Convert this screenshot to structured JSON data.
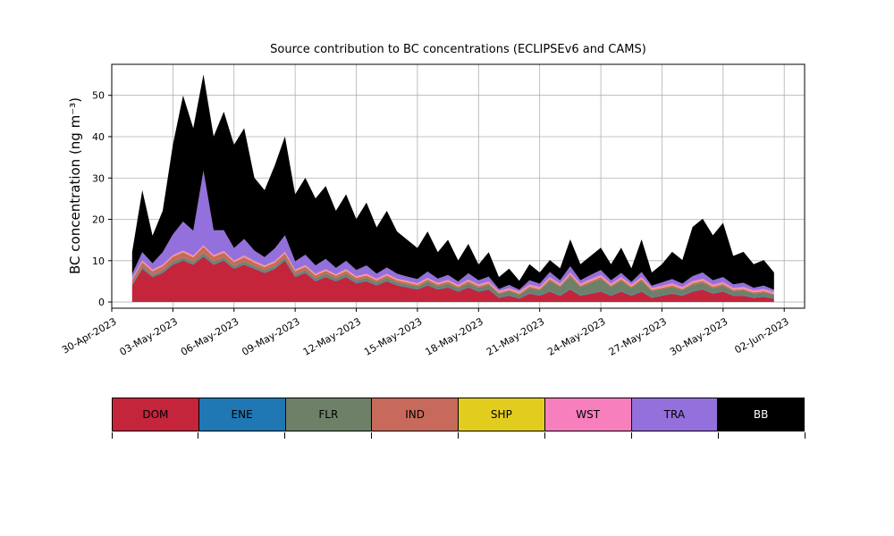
{
  "chart_data": {
    "type": "area",
    "stacked": true,
    "title": "Source contribution to BC concentrations (ECLIPSEv6 and CAMS)",
    "xlabel": "",
    "ylabel": "BC concentration (ng m⁻³)",
    "x_unit": "days since 30-Apr-2023 00:00",
    "grid": true,
    "legend_position": "bottom-table",
    "xlim": [
      0,
      34
    ],
    "ylim": [
      -1.5,
      57.5
    ],
    "y_ticks": [
      0,
      10,
      20,
      30,
      40,
      50
    ],
    "x_ticks": [
      {
        "t": 0,
        "label": "30-Apr-2023"
      },
      {
        "t": 3,
        "label": "03-May-2023"
      },
      {
        "t": 6,
        "label": "06-May-2023"
      },
      {
        "t": 9,
        "label": "09-May-2023"
      },
      {
        "t": 12,
        "label": "12-May-2023"
      },
      {
        "t": 15,
        "label": "15-May-2023"
      },
      {
        "t": 18,
        "label": "18-May-2023"
      },
      {
        "t": 21,
        "label": "21-May-2023"
      },
      {
        "t": 24,
        "label": "24-May-2023"
      },
      {
        "t": 27,
        "label": "27-May-2023"
      },
      {
        "t": 30,
        "label": "30-May-2023"
      },
      {
        "t": 33,
        "label": "02-Jun-2023"
      }
    ],
    "x": [
      1,
      1.5,
      2,
      2.5,
      3,
      3.5,
      4,
      4.5,
      5,
      5.5,
      6,
      6.5,
      7,
      7.5,
      8,
      8.5,
      9,
      9.5,
      10,
      10.5,
      11,
      11.5,
      12,
      12.5,
      13,
      13.5,
      14,
      14.5,
      15,
      15.5,
      16,
      16.5,
      17,
      17.5,
      18,
      18.5,
      19,
      19.5,
      20,
      20.5,
      21,
      21.5,
      22,
      22.5,
      23,
      23.5,
      24,
      24.5,
      25,
      25.5,
      26,
      26.5,
      27,
      27.5,
      28,
      28.5,
      29,
      29.5,
      30,
      30.5,
      31,
      31.5,
      32,
      32.5
    ],
    "series": [
      {
        "name": "DOM",
        "color": "#c4253b",
        "values": [
          4,
          8,
          6,
          7,
          9,
          10,
          9,
          11,
          9,
          10,
          8,
          9,
          8,
          7,
          8,
          10,
          6,
          7,
          5,
          6,
          5,
          6,
          4.5,
          5,
          4,
          5,
          4,
          3.5,
          3,
          4,
          3,
          3.5,
          2.5,
          3.5,
          2.5,
          3,
          1,
          1.5,
          0.8,
          2,
          1.5,
          2.5,
          1.5,
          3,
          1.5,
          2,
          2.5,
          1.5,
          2.5,
          1.5,
          2.5,
          1,
          1.5,
          2,
          1.5,
          2.5,
          3,
          2,
          2.5,
          1.5,
          1.5,
          1,
          1.2,
          0.8
        ]
      },
      {
        "name": "ENE",
        "color": "#1f77b4",
        "values": [
          0.15,
          0.15,
          0.15,
          0.15,
          0.15,
          0.15,
          0.15,
          0.15,
          0.15,
          0.15,
          0.15,
          0.15,
          0.15,
          0.15,
          0.15,
          0.15,
          0.15,
          0.15,
          0.15,
          0.15,
          0.15,
          0.15,
          0.15,
          0.15,
          0.15,
          0.15,
          0.15,
          0.15,
          0.15,
          0.15,
          0.15,
          0.15,
          0.15,
          0.15,
          0.15,
          0.15,
          0.15,
          0.15,
          0.15,
          0.15,
          0.15,
          0.15,
          0.15,
          0.15,
          0.15,
          0.15,
          0.15,
          0.15,
          0.15,
          0.15,
          0.15,
          0.15,
          0.15,
          0.15,
          0.15,
          0.15,
          0.15,
          0.15,
          0.15,
          0.15,
          0.15,
          0.15,
          0.15,
          0.15
        ]
      },
      {
        "name": "FLR",
        "color": "#6d8168",
        "values": [
          0.4,
          0.5,
          0.4,
          0.5,
          0.6,
          0.6,
          0.5,
          0.7,
          0.6,
          0.6,
          0.5,
          0.6,
          0.5,
          0.5,
          0.5,
          0.6,
          0.5,
          0.6,
          0.6,
          0.7,
          0.6,
          0.7,
          0.6,
          0.7,
          0.6,
          0.7,
          0.6,
          0.6,
          0.6,
          0.8,
          0.7,
          0.8,
          0.7,
          0.9,
          0.8,
          1,
          0.8,
          1,
          0.8,
          1.2,
          1.2,
          2.5,
          2,
          3,
          2,
          2.5,
          3,
          2,
          2.5,
          1.8,
          2.5,
          1.5,
          1.5,
          1.5,
          1.2,
          1.5,
          1.5,
          1.2,
          1.3,
          1,
          1.2,
          0.9,
          1,
          0.8
        ]
      },
      {
        "name": "IND",
        "color": "#c76a5b",
        "values": [
          0.8,
          1,
          0.9,
          1,
          1.2,
          1.3,
          1.2,
          1.5,
          1.2,
          1.2,
          1,
          1.1,
          0.9,
          0.8,
          0.9,
          1,
          0.8,
          0.8,
          0.7,
          0.7,
          0.6,
          0.7,
          0.6,
          0.6,
          0.5,
          0.6,
          0.5,
          0.5,
          0.4,
          0.5,
          0.4,
          0.5,
          0.4,
          0.5,
          0.4,
          0.4,
          0.3,
          0.3,
          0.3,
          0.4,
          0.3,
          0.4,
          0.3,
          0.5,
          0.3,
          0.4,
          0.4,
          0.3,
          0.4,
          0.3,
          0.4,
          0.3,
          0.3,
          0.4,
          0.3,
          0.4,
          0.5,
          0.4,
          0.4,
          0.3,
          0.3,
          0.3,
          0.3,
          0.2
        ]
      },
      {
        "name": "SHP",
        "color": "#e2cd1e",
        "values": [
          0.1,
          0.1,
          0.1,
          0.1,
          0.1,
          0.1,
          0.1,
          0.1,
          0.1,
          0.1,
          0.1,
          0.1,
          0.1,
          0.1,
          0.1,
          0.1,
          0.1,
          0.1,
          0.1,
          0.1,
          0.1,
          0.1,
          0.1,
          0.1,
          0.1,
          0.1,
          0.1,
          0.1,
          0.1,
          0.1,
          0.1,
          0.1,
          0.1,
          0.1,
          0.1,
          0.1,
          0.1,
          0.1,
          0.1,
          0.1,
          0.1,
          0.1,
          0.1,
          0.1,
          0.1,
          0.1,
          0.1,
          0.1,
          0.1,
          0.1,
          0.1,
          0.1,
          0.1,
          0.1,
          0.1,
          0.1,
          0.1,
          0.1,
          0.1,
          0.1,
          0.1,
          0.1,
          0.1,
          0.1
        ]
      },
      {
        "name": "WST",
        "color": "#f77fbe",
        "values": [
          0.3,
          0.3,
          0.3,
          0.3,
          0.3,
          0.3,
          0.3,
          0.3,
          0.3,
          0.3,
          0.3,
          0.3,
          0.3,
          0.3,
          0.3,
          0.3,
          0.3,
          0.3,
          0.3,
          0.3,
          0.3,
          0.3,
          0.3,
          0.3,
          0.3,
          0.3,
          0.3,
          0.3,
          0.3,
          0.3,
          0.3,
          0.3,
          0.3,
          0.3,
          0.3,
          0.3,
          0.3,
          0.3,
          0.4,
          0.4,
          0.4,
          0.4,
          0.4,
          0.4,
          0.4,
          0.4,
          0.4,
          0.4,
          0.4,
          0.4,
          0.4,
          0.4,
          0.4,
          0.4,
          0.4,
          0.4,
          0.4,
          0.4,
          0.4,
          0.4,
          0.4,
          0.4,
          0.4,
          0.4
        ]
      },
      {
        "name": "TRA",
        "color": "#9370db",
        "values": [
          1,
          2,
          1.5,
          3,
          5,
          7,
          6,
          18,
          6,
          5,
          3,
          4,
          2.5,
          2,
          3,
          4,
          2,
          2.5,
          2,
          2.5,
          1.5,
          2,
          1.5,
          2,
          1.2,
          1.5,
          1.2,
          1,
          1,
          1.5,
          1,
          1.2,
          0.8,
          1.5,
          1,
          1.2,
          0.5,
          0.8,
          0.4,
          1,
          0.8,
          1.2,
          0.8,
          1.5,
          0.8,
          1,
          1.2,
          0.8,
          1,
          0.6,
          1.2,
          0.5,
          0.8,
          1,
          0.8,
          1.2,
          1.5,
          1,
          1.2,
          0.8,
          1,
          0.6,
          0.8,
          0.5
        ]
      },
      {
        "name": "BB",
        "color": "#000000",
        "values": [
          5.3,
          15,
          6.7,
          10,
          21.7,
          30.5,
          24.8,
          23.3,
          22.7,
          28.7,
          25,
          26.8,
          17.6,
          16.2,
          20.1,
          23.9,
          16.2,
          18.6,
          16.2,
          17.6,
          13.8,
          16.1,
          12.3,
          15.2,
          11.2,
          13.7,
          10.2,
          8.9,
          7.5,
          9.7,
          6.4,
          8.5,
          5.1,
          7.1,
          3.8,
          5.9,
          2.9,
          3.9,
          2.2,
          3.9,
          2.7,
          2.9,
          2.9,
          6.5,
          3.9,
          4.6,
          5.4,
          3.9,
          6.1,
          3.3,
          7.9,
          3.2,
          4.4,
          6.6,
          5.7,
          11.9,
          13,
          10.9,
          13.1,
          6.9,
          7.5,
          5.7,
          6.2,
          4.2
        ]
      }
    ],
    "style": {
      "grid_color": "#b0b0b0",
      "axis_color": "#000000",
      "background": "#ffffff"
    }
  }
}
